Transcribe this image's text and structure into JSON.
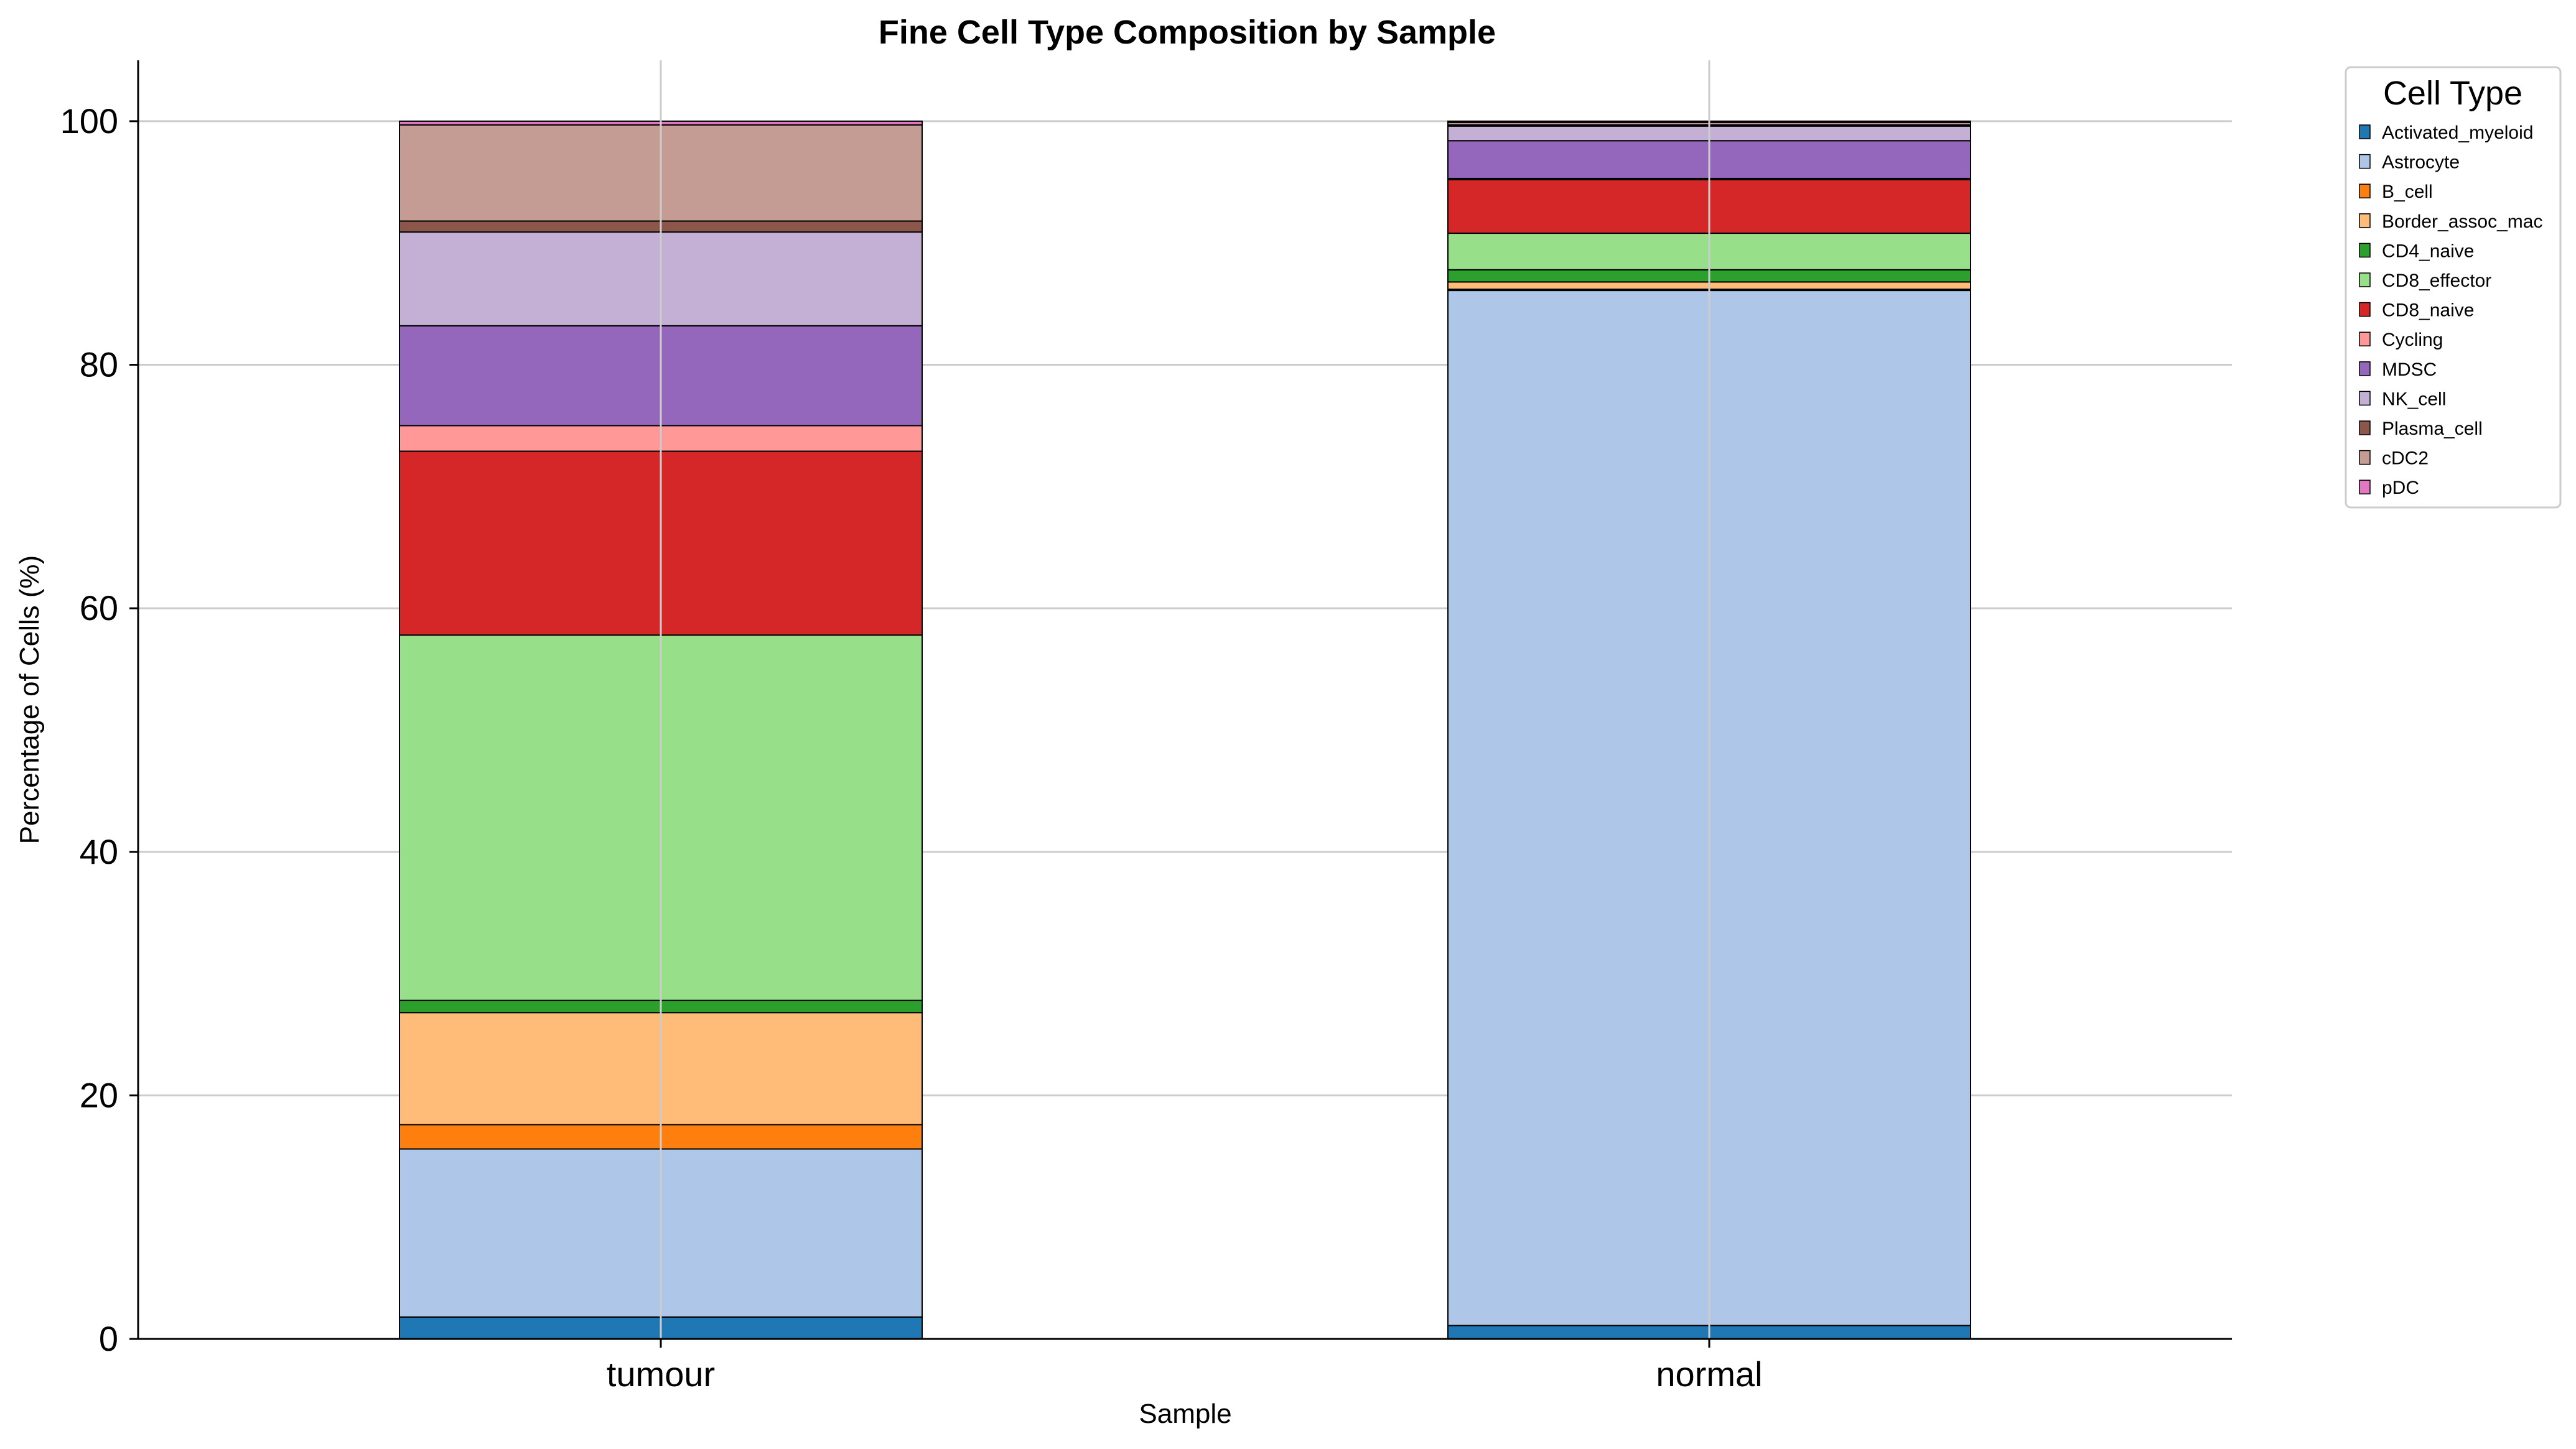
{
  "chart_data": {
    "type": "bar",
    "stacked": true,
    "title": "Fine Cell Type Composition by Sample",
    "xlabel": "Sample",
    "ylabel": "Percentage of Cells (%)",
    "ylim": [
      0,
      105
    ],
    "yticks": [
      0,
      20,
      40,
      60,
      80,
      100
    ],
    "grid": true,
    "legend_title": "Cell Type",
    "legend_position": "upper right, outside plot",
    "categories": [
      "tumour",
      "normal"
    ],
    "series": [
      {
        "name": "Activated_myeloid",
        "color": "#1f77b4",
        "values": [
          1.8,
          1.1
        ]
      },
      {
        "name": "Astrocyte",
        "color": "#aec7e8",
        "values": [
          13.8,
          85.0
        ]
      },
      {
        "name": "B_cell",
        "color": "#ff7f0e",
        "values": [
          2.0,
          0.1
        ]
      },
      {
        "name": "Border_assoc_mac",
        "color": "#ffbb78",
        "values": [
          9.2,
          0.6
        ]
      },
      {
        "name": "CD4_naive",
        "color": "#2ca02c",
        "values": [
          1.0,
          1.0
        ]
      },
      {
        "name": "CD8_effector",
        "color": "#98df8a",
        "values": [
          30.0,
          3.0
        ]
      },
      {
        "name": "CD8_naive",
        "color": "#d62728",
        "values": [
          15.1,
          4.4
        ]
      },
      {
        "name": "Cycling",
        "color": "#ff9896",
        "values": [
          2.1,
          0.1
        ]
      },
      {
        "name": "MDSC",
        "color": "#9467bd",
        "values": [
          8.2,
          3.1
        ]
      },
      {
        "name": "NK_cell",
        "color": "#c5b0d5",
        "values": [
          7.7,
          1.2
        ]
      },
      {
        "name": "Plasma_cell",
        "color": "#8c564b",
        "values": [
          0.9,
          0.1
        ]
      },
      {
        "name": "cDC2",
        "color": "#c49c94",
        "values": [
          7.9,
          0.2
        ]
      },
      {
        "name": "pDC",
        "color": "#e377c2",
        "values": [
          0.3,
          0.1
        ]
      }
    ]
  }
}
